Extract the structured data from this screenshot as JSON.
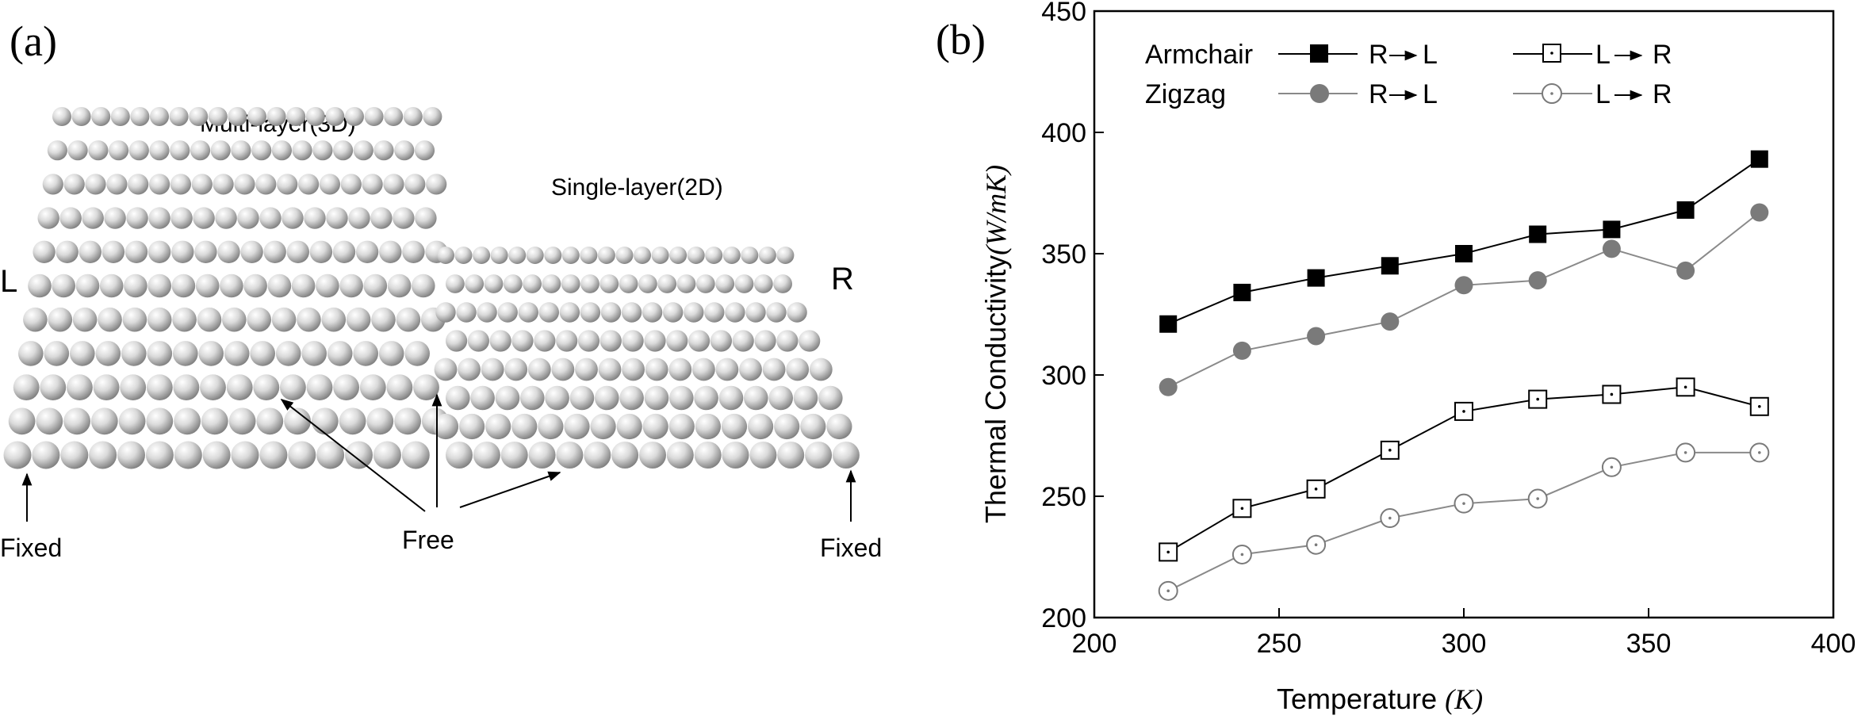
{
  "panel_a": {
    "label": "(a)",
    "multi_layer_label": "Multi-layer(3D)",
    "single_layer_label": "Single-layer(2D)",
    "left_end_label": "L",
    "right_end_label": "R",
    "fixed_left_label": "Fixed",
    "fixed_right_label": "Fixed",
    "free_label": "Free"
  },
  "panel_b": {
    "label": "(b)"
  },
  "chart_data": {
    "type": "line",
    "x": [
      220,
      240,
      260,
      280,
      300,
      320,
      340,
      360,
      380
    ],
    "xlim": [
      200,
      400
    ],
    "ylim": [
      200,
      450
    ],
    "xticks": [
      "200",
      "250",
      "300",
      "350",
      "400"
    ],
    "yticks": [
      "200",
      "250",
      "300",
      "350",
      "400",
      "450"
    ],
    "xlabel": {
      "text": "Temperature ",
      "unit": "K"
    },
    "ylabel": {
      "text": "Thermal Conductivity",
      "unit": "(W/mK)"
    },
    "grid": false,
    "legend_position": "top",
    "legend": {
      "row_labels": [
        "Armchair",
        "Zigzag"
      ],
      "dir_r_to_l": [
        "R",
        "L"
      ],
      "dir_l_to_r": [
        "L",
        "R"
      ]
    },
    "series": [
      {
        "name": "Armchair R→L",
        "marker": "filled-square",
        "color": "#000000",
        "values": [
          321,
          334,
          340,
          345,
          350,
          358,
          360,
          368,
          389
        ]
      },
      {
        "name": "Zigzag R→L",
        "marker": "filled-circle",
        "color": "#7a7a7a",
        "values": [
          295,
          310,
          316,
          322,
          337,
          339,
          352,
          343,
          367
        ]
      },
      {
        "name": "Armchair L→R",
        "marker": "open-square-dot",
        "color": "#000000",
        "values": [
          227,
          245,
          253,
          269,
          285,
          290,
          292,
          295,
          287
        ]
      },
      {
        "name": "Zigzag L→R",
        "marker": "open-circle-dot",
        "color": "#7a7a7a",
        "values": [
          211,
          226,
          230,
          241,
          247,
          249,
          262,
          268,
          268
        ]
      }
    ]
  }
}
